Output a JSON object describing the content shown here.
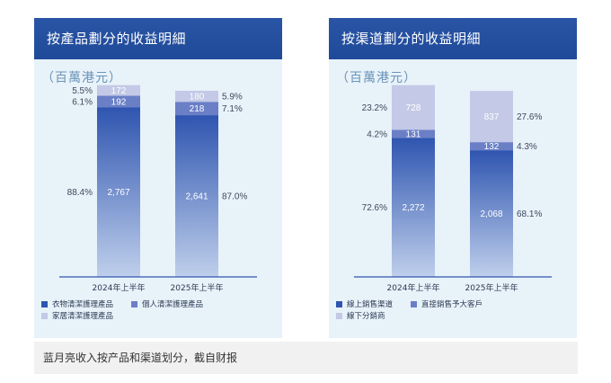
{
  "colors": {
    "header_bg": "#234f9f",
    "panel_bg": "#e8f2f9",
    "series1": "#2f55b0",
    "series1_light": "#bfcfeb",
    "series2": "#6a7fc6",
    "series3": "#c3c9e6",
    "axis": "#2f55b0"
  },
  "chart_data": [
    {
      "type": "bar",
      "stacked": true,
      "title": "按產品劃分的收益明細",
      "unit": "（百萬港元）",
      "categories": [
        "2024年上半年",
        "2025年上半年"
      ],
      "series": [
        {
          "name": "衣物清潔護理產品",
          "values": [
            2767,
            2641
          ],
          "percent_labels": [
            "88.4%",
            "87.0%"
          ],
          "color": "#2f55b0"
        },
        {
          "name": "個人清潔護理產品",
          "values": [
            192,
            218
          ],
          "percent_labels": [
            "6.1%",
            "7.1%"
          ],
          "color": "#6a7fc6"
        },
        {
          "name": "家居清潔護理產品",
          "values": [
            172,
            180
          ],
          "percent_labels": [
            "5.5%",
            "5.9%"
          ],
          "color": "#c3c9e6"
        }
      ],
      "value_labels": [
        [
          "2,767",
          "192",
          "172"
        ],
        [
          "2,641",
          "218",
          "180"
        ]
      ],
      "percent_side": [
        "left",
        "right"
      ],
      "ylim": [
        0,
        3200
      ],
      "legend_rows": [
        [
          0,
          1
        ],
        [
          2
        ]
      ]
    },
    {
      "type": "bar",
      "stacked": true,
      "title": "按渠道劃分的收益明細",
      "unit": "（百萬港元）",
      "categories": [
        "2024年上半年",
        "2025年上半年"
      ],
      "series": [
        {
          "name": "線上銷售渠道",
          "values": [
            2272,
            2068
          ],
          "percent_labels": [
            "72.6%",
            "68.1%"
          ],
          "color": "#2f55b0"
        },
        {
          "name": "直接銷售予大客戶",
          "values": [
            131,
            132
          ],
          "percent_labels": [
            "4.2%",
            "4.3%"
          ],
          "color": "#6a7fc6"
        },
        {
          "name": "線下分銷商",
          "values": [
            728,
            837
          ],
          "percent_labels": [
            "23.2%",
            "27.6%"
          ],
          "color": "#c3c9e6"
        }
      ],
      "value_labels": [
        [
          "2,272",
          "131",
          "728"
        ],
        [
          "2,068",
          "132",
          "837"
        ]
      ],
      "percent_side": [
        "left",
        "right"
      ],
      "ylim": [
        0,
        3200
      ],
      "legend_rows": [
        [
          0,
          1
        ],
        [
          2
        ]
      ]
    }
  ],
  "caption": "蓝月亮收入按产品和渠道划分，截自财报"
}
